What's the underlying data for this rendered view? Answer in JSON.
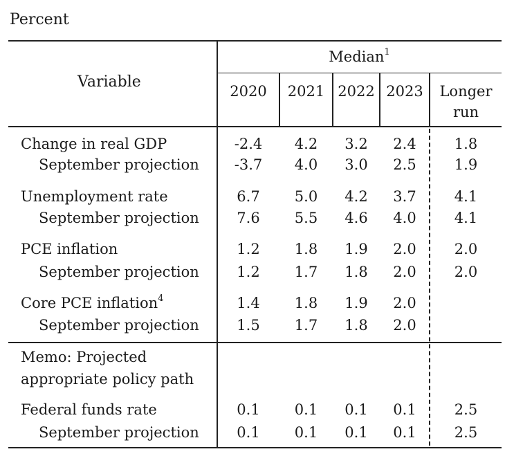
{
  "unit_label": "Percent",
  "header": {
    "variable": "Variable",
    "median": "Median",
    "median_note": "1",
    "years": [
      "2020",
      "2021",
      "2022",
      "2023"
    ],
    "longer_run_line1": "Longer",
    "longer_run_line2": "run"
  },
  "rows": [
    {
      "label": "Change in real GDP",
      "values": [
        "-2.4",
        "4.2",
        "3.2",
        "2.4"
      ],
      "longer": "1.8"
    },
    {
      "label": "September projection",
      "values": [
        "-3.7",
        "4.0",
        "3.0",
        "2.5"
      ],
      "longer": "1.9"
    },
    {
      "label": "Unemployment rate",
      "values": [
        "6.7",
        "5.0",
        "4.2",
        "3.7"
      ],
      "longer": "4.1"
    },
    {
      "label": "September projection",
      "values": [
        "7.6",
        "5.5",
        "4.6",
        "4.0"
      ],
      "longer": "4.1"
    },
    {
      "label": "PCE inflation",
      "values": [
        "1.2",
        "1.8",
        "1.9",
        "2.0"
      ],
      "longer": "2.0"
    },
    {
      "label": "September projection",
      "values": [
        "1.2",
        "1.7",
        "1.8",
        "2.0"
      ],
      "longer": "2.0"
    },
    {
      "label": "Core PCE inflation",
      "note": "4",
      "values": [
        "1.4",
        "1.8",
        "1.9",
        "2.0"
      ],
      "longer": ""
    },
    {
      "label": "September projection",
      "values": [
        "1.5",
        "1.7",
        "1.8",
        "2.0"
      ],
      "longer": ""
    }
  ],
  "memo": {
    "line1": "Memo: Projected",
    "line2": "appropriate policy path",
    "rows": [
      {
        "label": "Federal funds rate",
        "values": [
          "0.1",
          "0.1",
          "0.1",
          "0.1"
        ],
        "longer": "2.5"
      },
      {
        "label": "September projection",
        "values": [
          "0.1",
          "0.1",
          "0.1",
          "0.1"
        ],
        "longer": "2.5"
      }
    ]
  }
}
